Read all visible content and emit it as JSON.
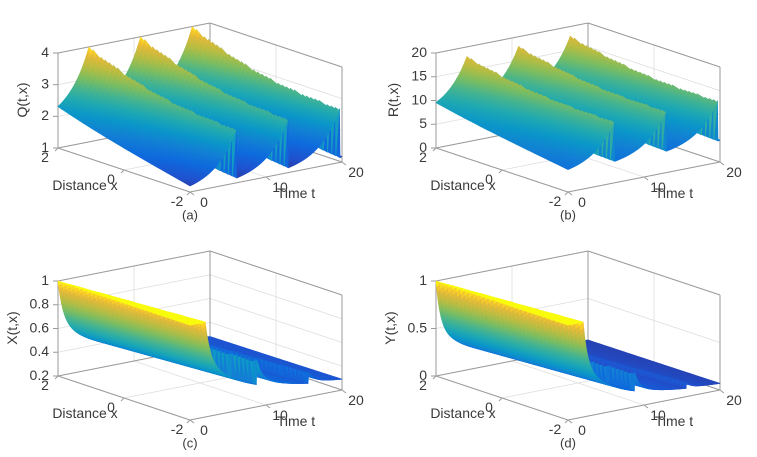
{
  "figure": {
    "background": "#ffffff",
    "text_color": "#3a3a3a",
    "axis_color": "#9a9a9a",
    "grid_color": "#dedede",
    "colormap_name": "parula",
    "colormap_stops": [
      [
        0.0,
        "#352a87"
      ],
      [
        0.1,
        "#2053cf"
      ],
      [
        0.2,
        "#0f6bdd"
      ],
      [
        0.3,
        "#1380d4"
      ],
      [
        0.4,
        "#0b97c9"
      ],
      [
        0.5,
        "#20a9b2"
      ],
      [
        0.6,
        "#46b490"
      ],
      [
        0.7,
        "#7cbd61"
      ],
      [
        0.8,
        "#b4bd44"
      ],
      [
        0.9,
        "#e1b93a"
      ],
      [
        0.96,
        "#fbce27"
      ],
      [
        1.0,
        "#f9fb0e"
      ]
    ]
  },
  "chart_data": [
    {
      "type": "surface",
      "caption": "(a)",
      "zlabel": "Q(t,x)",
      "xlabel": "Distance x",
      "tlabel": "Time t",
      "x_range": [
        -2,
        2
      ],
      "t_range": [
        0,
        20
      ],
      "z_range": [
        1,
        4
      ],
      "x_ticks": [
        -2,
        0,
        2
      ],
      "t_ticks": [
        0,
        10,
        20
      ],
      "z_ticks": [
        1,
        2,
        3,
        4
      ],
      "grid": true,
      "view": "azimuth -37.5, elevation 30",
      "surface": {
        "model": "relax",
        "period": 6.8,
        "delay": 0.5,
        "phase": 0.4,
        "k": 2.5,
        "c0": 1.15,
        "c1": 0.85,
        "c2": 1.55,
        "c3": 0.45,
        "dip": 0.15
      },
      "summary": "Periodic wave train: Q grows slowly from ~2 to peaks near 4 at x=2 (1.1 to 2.7 at x=-2) then collapses sharply; period ~6.8, collapse arrives ~2 time units later at the front (x=-2)."
    },
    {
      "type": "surface",
      "caption": "(b)",
      "zlabel": "R(t,x)",
      "xlabel": "Distance x",
      "tlabel": "Time t",
      "x_range": [
        -2,
        2
      ],
      "t_range": [
        0,
        20
      ],
      "z_range": [
        0,
        20
      ],
      "x_ticks": [
        -2,
        0,
        2
      ],
      "t_ticks": [
        0,
        10,
        20
      ],
      "z_ticks": [
        0,
        5,
        10,
        15,
        20
      ],
      "grid": true,
      "view": "azimuth -37.5, elevation 30",
      "surface": {
        "model": "relax",
        "period": 6.8,
        "delay": 0.5,
        "phase": 0.4,
        "k": 2.5,
        "c0": 4.5,
        "c1": 3.5,
        "c2": 8.5,
        "c3": 1.5,
        "dip": 0.12
      },
      "summary": "Periodic wave train: R oscillates between ~8 and ~18 at x=2 and ~4.5 to ~13 at x=-2 with sharp periodic collapses every ~6.8 time units, staggered toward the front."
    },
    {
      "type": "surface",
      "caption": "(c)",
      "zlabel": "X(t,x)",
      "xlabel": "Distance x",
      "tlabel": "Time t",
      "x_range": [
        -2,
        2
      ],
      "t_range": [
        0,
        20
      ],
      "z_range": [
        0.2,
        1
      ],
      "x_ticks": [
        -2,
        0,
        2
      ],
      "t_ticks": [
        0,
        10,
        20
      ],
      "z_ticks": [
        0.2,
        0.4,
        0.6,
        0.8,
        1
      ],
      "grid": true,
      "view": "azimuth -37.5, elevation 30",
      "surface": {
        "model": "decay",
        "period": 6.8,
        "delay": 0.5,
        "floor": 0.25,
        "amp": 0.75,
        "rho": 0.45,
        "w1": 0.45,
        "q1": 10,
        "w2": 0.55,
        "q2": 1.1
      },
      "summary": "X starts at 1 at t=0, decays steeply toward ~0.3, then shows smaller re-excited bumps (~0.6 then ~0.4) each ~6.8 time units, arriving later toward x=-2."
    },
    {
      "type": "surface",
      "caption": "(d)",
      "zlabel": "Y(t,x)",
      "xlabel": "Distance x",
      "tlabel": "Time t",
      "x_range": [
        -2,
        2
      ],
      "t_range": [
        0,
        20
      ],
      "z_range": [
        0,
        1
      ],
      "x_ticks": [
        -2,
        0,
        2
      ],
      "t_ticks": [
        0,
        10,
        20
      ],
      "z_ticks": [
        0,
        0.5,
        1
      ],
      "grid": true,
      "view": "azimuth -37.5, elevation 30",
      "surface": {
        "model": "decay",
        "period": 6.8,
        "delay": 0.5,
        "floor": 0.05,
        "amp": 0.95,
        "rho": 0.32,
        "w1": 0.5,
        "q1": 12,
        "w2": 0.5,
        "q2": 1.4
      },
      "summary": "Y starts at 1 at t=0 and decays rapidly toward ~0.1 with small dark-blue periodic bumps (~0.35, ~0.15) every ~6.8 time units, staggered toward x=-2."
    }
  ]
}
